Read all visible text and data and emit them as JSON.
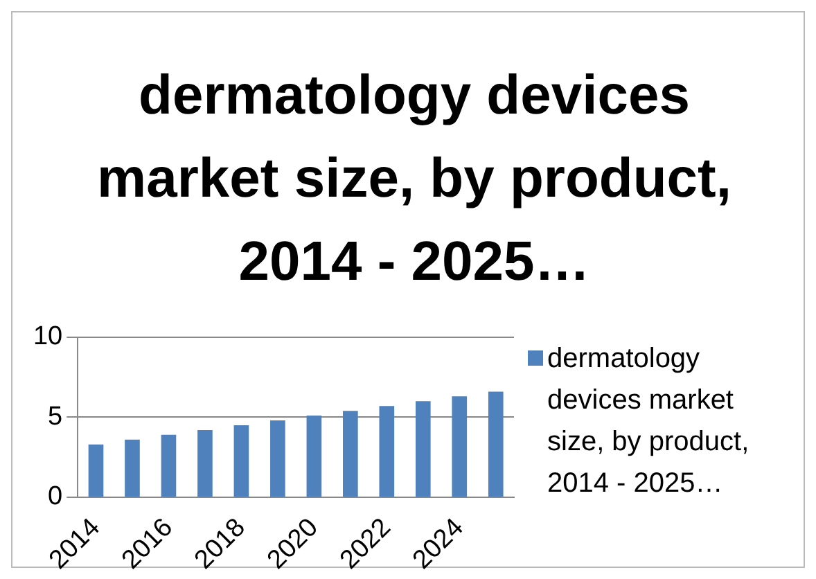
{
  "chart_data": {
    "type": "bar",
    "title": "dermatology devices market size, by product, 2014 - 2025…",
    "categories": [
      "2014",
      null,
      "2016",
      null,
      "2018",
      null,
      "2020",
      null,
      "2022",
      null,
      "2024",
      null
    ],
    "series": [
      {
        "name": "dermatology devices market size, by product, 2014 - 2025…",
        "color": "#4f81bd",
        "values": [
          3.3,
          3.6,
          3.9,
          4.2,
          4.5,
          4.8,
          5.1,
          5.4,
          5.7,
          6.0,
          6.3,
          6.6
        ]
      }
    ],
    "ylim": [
      0,
      10
    ],
    "yticks": [
      0,
      5,
      10
    ],
    "grid": "y",
    "legend": "right"
  }
}
